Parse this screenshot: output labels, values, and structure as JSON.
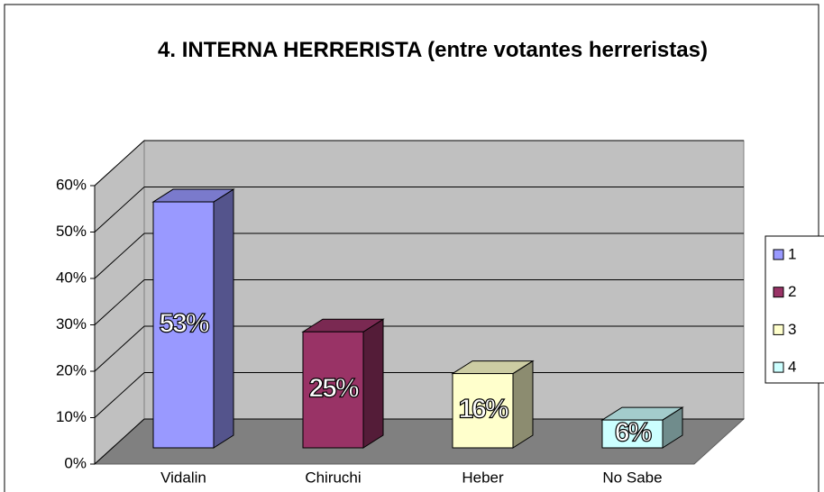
{
  "chart_data": {
    "type": "bar3d",
    "title": "4. INTERNA HERRERISTA (entre votantes herreristas)",
    "categories": [
      "Vidalin",
      "Chiruchi",
      "Heber",
      "No Sabe"
    ],
    "values": [
      53,
      25,
      16,
      6
    ],
    "value_labels": [
      "53%",
      "25%",
      "16%",
      "6%"
    ],
    "colors": [
      "#9999ff",
      "#993366",
      "#ffffcc",
      "#ccffff"
    ],
    "legend": [
      "1",
      "2",
      "3",
      "4"
    ],
    "legend_position": "right",
    "ylim": [
      0,
      60
    ],
    "yticks": [
      {
        "value": 0,
        "label": "0%"
      },
      {
        "value": 10,
        "label": "10%"
      },
      {
        "value": 20,
        "label": "20%"
      },
      {
        "value": 30,
        "label": "30%"
      },
      {
        "value": 40,
        "label": "40%"
      },
      {
        "value": 50,
        "label": "50%"
      },
      {
        "value": 60,
        "label": "60%"
      }
    ],
    "grid": true
  }
}
